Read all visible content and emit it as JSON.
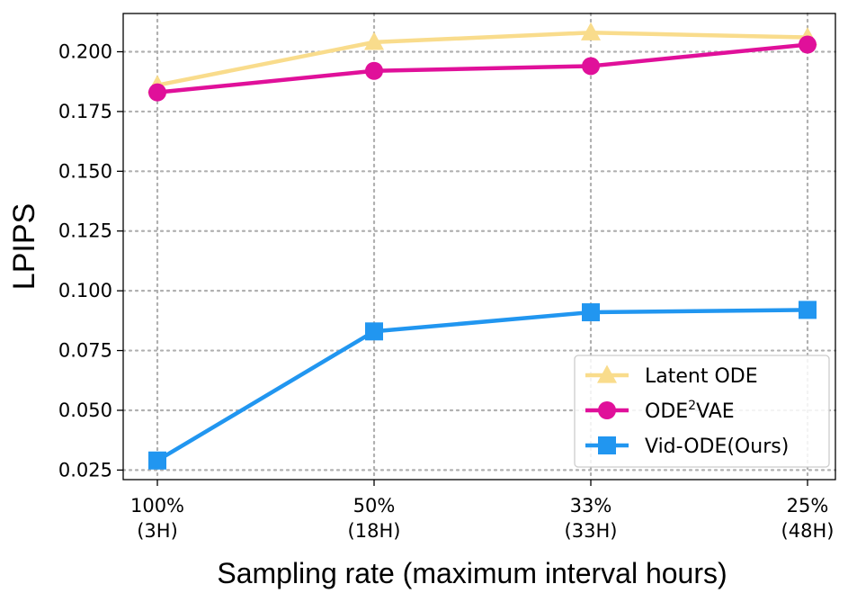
{
  "chart_data": {
    "type": "line",
    "title": "",
    "xlabel": "Sampling rate (maximum interval hours)",
    "ylabel": "LPIPS",
    "x": [
      {
        "rate": 100,
        "hours": 3
      },
      {
        "rate": 50,
        "hours": 18
      },
      {
        "rate": 33,
        "hours": 33
      },
      {
        "rate": 25,
        "hours": 48
      }
    ],
    "x_tick_labels": [
      {
        "line1": "100%",
        "line2": "(3H)"
      },
      {
        "line1": "50%",
        "line2": "(18H)"
      },
      {
        "line1": "33%",
        "line2": "(33H)"
      },
      {
        "line1": "25%",
        "line2": "(48H)"
      }
    ],
    "ylim": [
      0.021,
      0.216
    ],
    "y_ticks": [
      "0.025",
      "0.050",
      "0.075",
      "0.100",
      "0.125",
      "0.150",
      "0.175",
      "0.200"
    ],
    "grid": true,
    "legend_position": "bottom-right",
    "series": [
      {
        "name": "Latent ODE",
        "name_base": "Latent ODE",
        "name_sup": "",
        "name_tail": "",
        "color": "#f9dc8c",
        "marker": "triangle",
        "values": [
          0.186,
          0.204,
          0.208,
          0.206
        ]
      },
      {
        "name": "ODE2VAE",
        "name_base": "ODE",
        "name_sup": "2",
        "name_tail": "VAE",
        "color": "#e0109a",
        "marker": "circle",
        "values": [
          0.183,
          0.192,
          0.194,
          0.203
        ]
      },
      {
        "name": "Vid-ODE(Ours)",
        "name_base": "Vid-ODE(Ours)",
        "name_sup": "",
        "name_tail": "",
        "color": "#2196f0",
        "marker": "square",
        "values": [
          0.029,
          0.083,
          0.091,
          0.092
        ]
      }
    ]
  }
}
